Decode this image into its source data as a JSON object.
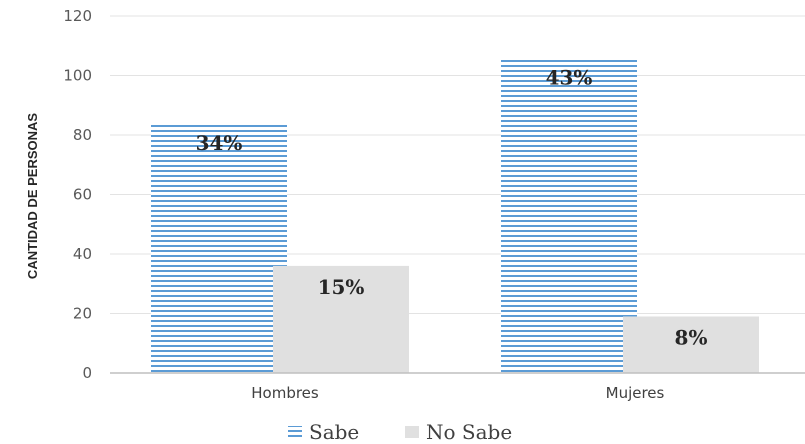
{
  "chart_data": {
    "type": "bar",
    "categories": [
      "Hombres",
      "Mujeres"
    ],
    "series": [
      {
        "name": "Sabe",
        "values": [
          84,
          106
        ],
        "labels": [
          "34%",
          "43%"
        ],
        "color": "#5b9bd5",
        "pattern": "horizontal-stripes"
      },
      {
        "name": "No Sabe",
        "values": [
          36,
          19
        ],
        "labels": [
          "15%",
          "8%"
        ],
        "color": "#e0e0e0",
        "pattern": "solid"
      }
    ],
    "ylabel": "CANTIDAD DE PERSONAS",
    "xlabel": "",
    "ylim": [
      0,
      120
    ],
    "yticks": [
      "0",
      "20",
      "40",
      "60",
      "80",
      "100",
      "120"
    ],
    "grid": true,
    "legend": "bottom"
  }
}
